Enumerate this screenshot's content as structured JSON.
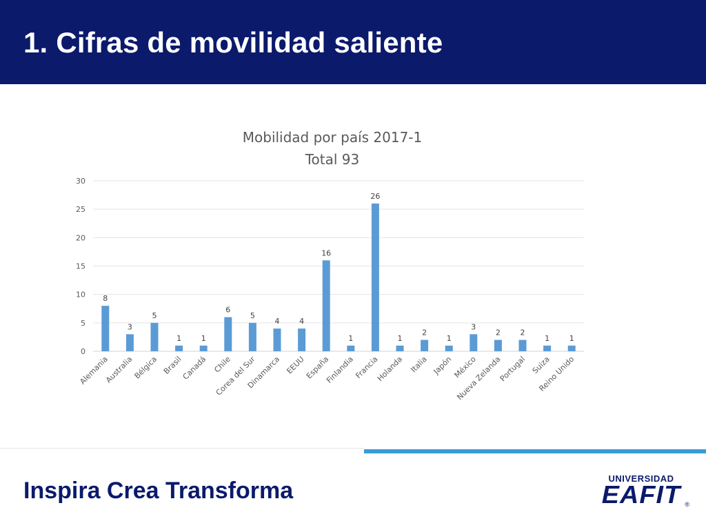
{
  "header": {
    "title": "1. Cifras de movilidad saliente"
  },
  "footer": {
    "slogan": "Inspira Crea Transforma",
    "logo_top": "UNIVERSIDAD",
    "logo_main": "EAFIT",
    "logo_mark": "®"
  },
  "colors": {
    "header_bg": "#0b1a6b",
    "bar": "#5b9bd5",
    "accent_line": "#3a9bd5"
  },
  "chart_data": {
    "type": "bar",
    "title": "Mobilidad por país 2017-1",
    "subtitle": "Total 93",
    "xlabel": "",
    "ylabel": "",
    "ylim": [
      0,
      30
    ],
    "yticks": [
      0,
      5,
      10,
      15,
      20,
      25,
      30
    ],
    "grid": true,
    "legend": "none",
    "categories": [
      "Alemania",
      "Australia",
      "Bélgica",
      "Brasil",
      "Canadá",
      "Chile",
      "Corea del Sur",
      "Dinamarca",
      "EEUU",
      "España",
      "Finlandia",
      "Francia",
      "Holanda",
      "Italia",
      "Japón",
      "México",
      "Nueva Zelanda",
      "Portugal",
      "Suiza",
      "Reino Unido"
    ],
    "values": [
      8,
      3,
      5,
      1,
      1,
      6,
      5,
      4,
      4,
      16,
      1,
      26,
      1,
      2,
      1,
      3,
      2,
      2,
      1,
      1
    ]
  }
}
